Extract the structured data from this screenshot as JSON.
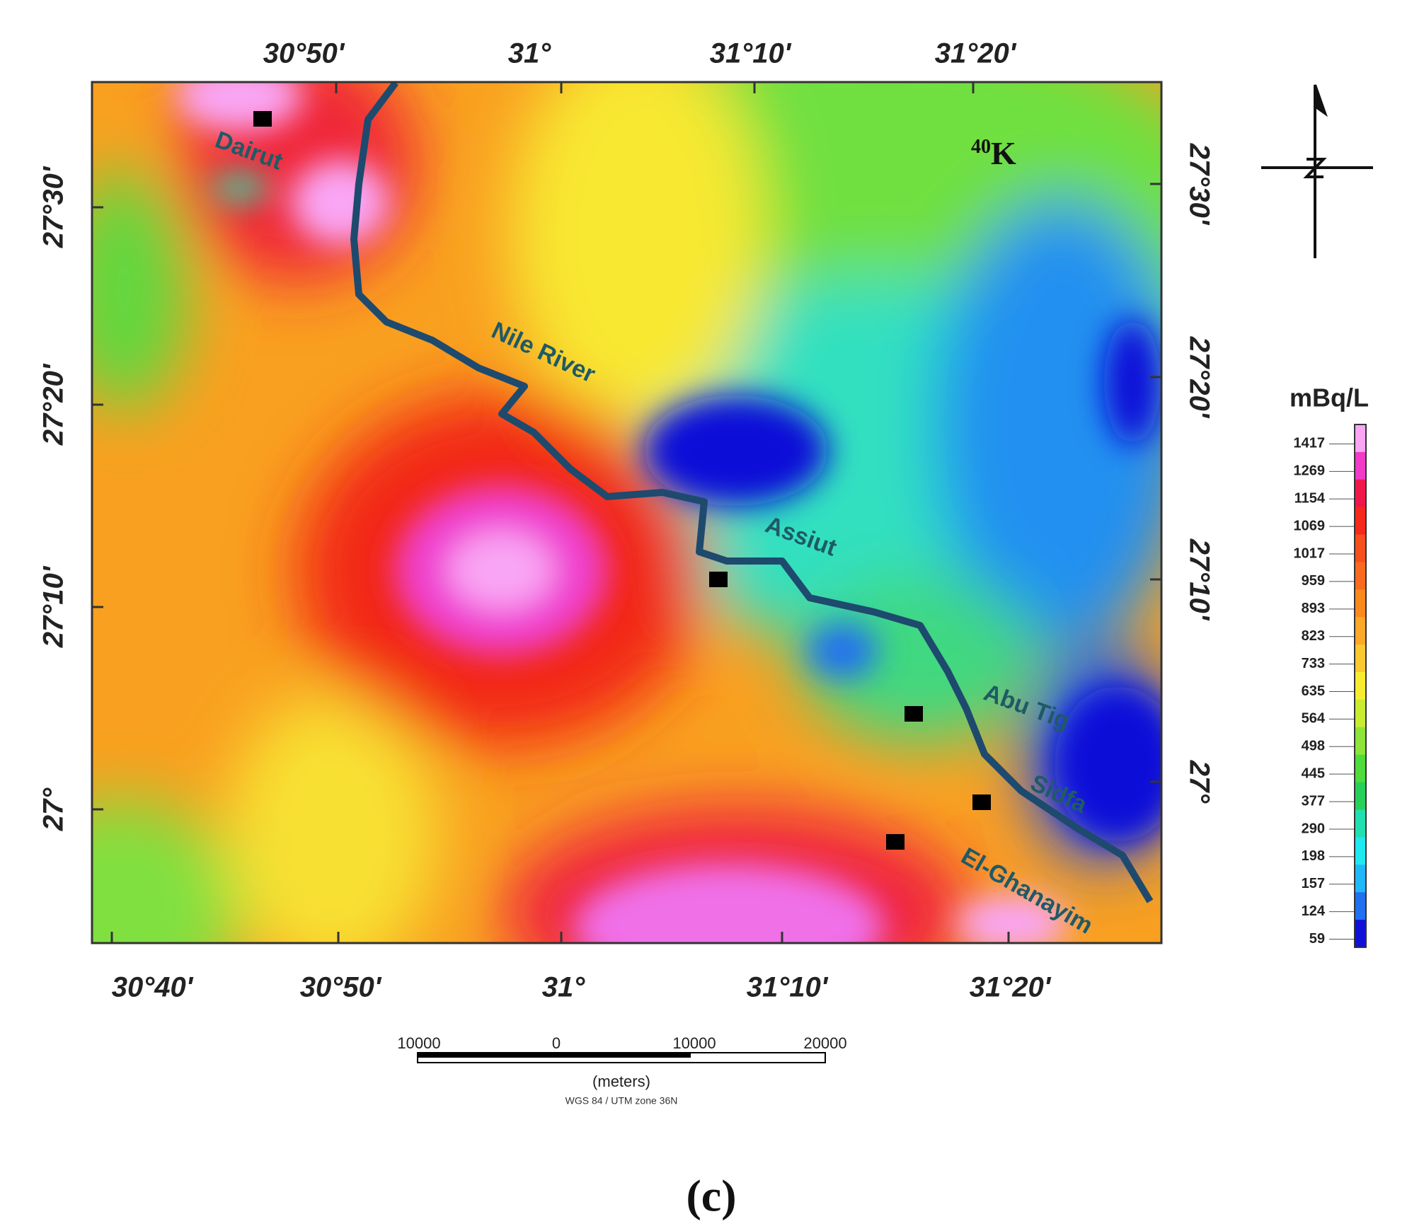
{
  "map": {
    "top_ticks": [
      "30°50'",
      "31°",
      "31°10'",
      "31°20'"
    ],
    "bottom_ticks": [
      "30°40'",
      "30°50'",
      "31°",
      "31°10'",
      "31°20'"
    ],
    "left_ticks": [
      "27°30'",
      "27°20'",
      "27°10'",
      "27°"
    ],
    "right_ticks": [
      "27°30'",
      "27°20'",
      "27°10'",
      "27°"
    ],
    "element": {
      "mass": "40",
      "symbol": "K"
    },
    "places": [
      "Dairut",
      "Nile River",
      "Assiut",
      "Abu Tig",
      "Sidfa",
      "El-Ghanayim"
    ],
    "legend": {
      "unit": "mBq/L",
      "entries": [
        {
          "label": "1417",
          "color": "#f9a6f5"
        },
        {
          "label": "1269",
          "color": "#f03cc8"
        },
        {
          "label": "1154",
          "color": "#f0184a"
        },
        {
          "label": "1069",
          "color": "#f52a1c"
        },
        {
          "label": "1017",
          "color": "#f5501e"
        },
        {
          "label": "959",
          "color": "#f86a1e"
        },
        {
          "label": "893",
          "color": "#fa8a20"
        },
        {
          "label": "823",
          "color": "#fca828"
        },
        {
          "label": "733",
          "color": "#fcc830"
        },
        {
          "label": "635",
          "color": "#f8ec30"
        },
        {
          "label": "564",
          "color": "#c8ec30"
        },
        {
          "label": "498",
          "color": "#8ee43a"
        },
        {
          "label": "445",
          "color": "#50dc3c"
        },
        {
          "label": "377",
          "color": "#28d05a"
        },
        {
          "label": "290",
          "color": "#20e0b0"
        },
        {
          "label": "198",
          "color": "#20e8f0"
        },
        {
          "label": "157",
          "color": "#20b8f8"
        },
        {
          "label": "124",
          "color": "#2070f0"
        },
        {
          "label": "59",
          "color": "#1010d8"
        }
      ]
    },
    "scale_bar": {
      "labels": [
        "10000",
        "0",
        "10000",
        "20000"
      ],
      "unit": "(meters)",
      "projection": "WGS 84 / UTM zone 36N"
    },
    "caption": "(c)"
  }
}
